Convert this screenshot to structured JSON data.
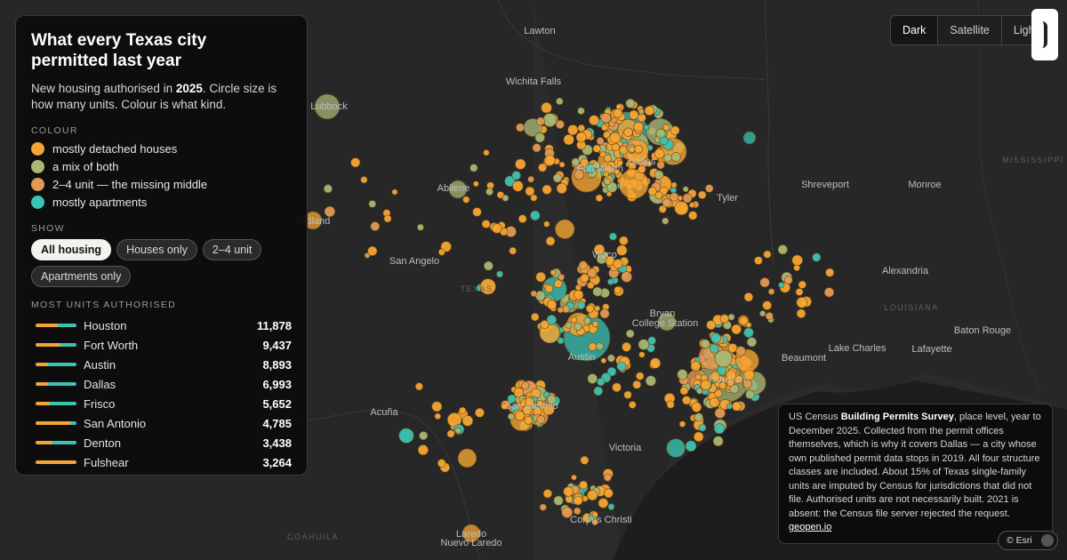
{
  "panel": {
    "title": "What every Texas city permitted last year",
    "subtitle_pre": "New housing authorised in ",
    "subtitle_year": "2025",
    "subtitle_post": ". Circle size is how many units. Colour is what kind.",
    "colour_heading": "COLOUR",
    "legend": [
      {
        "label": "mostly detached houses",
        "color": "#f5a533"
      },
      {
        "label": "a mix of both",
        "color": "#a8b774"
      },
      {
        "label": "2–4 unit — the missing middle",
        "color": "#e39a55"
      },
      {
        "label": "mostly apartments",
        "color": "#3cc3b3"
      }
    ],
    "show_heading": "SHOW",
    "filters": [
      {
        "label": "All housing",
        "active": true
      },
      {
        "label": "Houses only",
        "active": false
      },
      {
        "label": "2–4 unit",
        "active": false
      },
      {
        "label": "Apartments only",
        "active": false
      }
    ],
    "rank_heading": "MOST UNITS AUTHORISED",
    "rankings": [
      {
        "city": "Houston",
        "units": "11,878",
        "house_share": 0.55
      },
      {
        "city": "Fort Worth",
        "units": "9,437",
        "house_share": 0.6
      },
      {
        "city": "Austin",
        "units": "8,893",
        "house_share": 0.3
      },
      {
        "city": "Dallas",
        "units": "6,993",
        "house_share": 0.3
      },
      {
        "city": "Frisco",
        "units": "5,652",
        "house_share": 0.35
      },
      {
        "city": "San Antonio",
        "units": "4,785",
        "house_share": 0.85
      },
      {
        "city": "Denton",
        "units": "3,438",
        "house_share": 0.4
      },
      {
        "city": "Fulshear",
        "units": "3,264",
        "house_share": 1.0
      }
    ]
  },
  "basemap": [
    {
      "label": "Dark",
      "active": true
    },
    {
      "label": "Satellite",
      "active": false
    },
    {
      "label": "Light",
      "active": false
    }
  ],
  "note": {
    "pre": "US Census ",
    "bold": "Building Permits Survey",
    "post": ", place level, year to December 2025. Collected from the permit offices themselves, which is why it covers Dallas — a city whose own published permit data stops in 2019. All four structure classes are included. About 15% of Texas single-family units are imputed by Census for jurisdictions that did not file. Authorised units are not necessarily built. 2021 is absent: the Census file server rejected the request. ",
    "link": "geopen.io"
  },
  "attribution": "© Esri",
  "map_labels": [
    {
      "text": "Lawton",
      "kind": "city"
    },
    {
      "text": "Wichita Falls",
      "kind": "city"
    },
    {
      "text": "Lubbock",
      "kind": "city"
    },
    {
      "text": "Abilene",
      "kind": "city"
    },
    {
      "text": "Midland",
      "kind": "city"
    },
    {
      "text": "San Angelo",
      "kind": "city"
    },
    {
      "text": "Shreveport",
      "kind": "city"
    },
    {
      "text": "Monroe",
      "kind": "city"
    },
    {
      "text": "Alexandria",
      "kind": "city"
    },
    {
      "text": "Tyler",
      "kind": "city"
    },
    {
      "text": "Waco",
      "kind": "city"
    },
    {
      "text": "Bryan",
      "kind": "city"
    },
    {
      "text": "College Station",
      "kind": "city"
    },
    {
      "text": "Lake Charles",
      "kind": "city"
    },
    {
      "text": "Lafayette",
      "kind": "city"
    },
    {
      "text": "Baton Rouge",
      "kind": "city"
    },
    {
      "text": "Beaumont",
      "kind": "city"
    },
    {
      "text": "Houston",
      "kind": "city"
    },
    {
      "text": "Austin",
      "kind": "city"
    },
    {
      "text": "San Antonio",
      "kind": "city"
    },
    {
      "text": "Victoria",
      "kind": "city"
    },
    {
      "text": "Acuña",
      "kind": "city"
    },
    {
      "text": "Laredo",
      "kind": "city"
    },
    {
      "text": "Nuevo Laredo",
      "kind": "city"
    },
    {
      "text": "Corpus Christi",
      "kind": "city"
    },
    {
      "text": "Fort Worth",
      "kind": "city"
    },
    {
      "text": "Dallas",
      "kind": "city"
    },
    {
      "text": "TEXAS",
      "kind": "region"
    },
    {
      "text": "LOUISIANA",
      "kind": "region"
    },
    {
      "text": "MISSISSIPPI",
      "kind": "region"
    },
    {
      "text": "COAHUILA",
      "kind": "region"
    }
  ]
}
